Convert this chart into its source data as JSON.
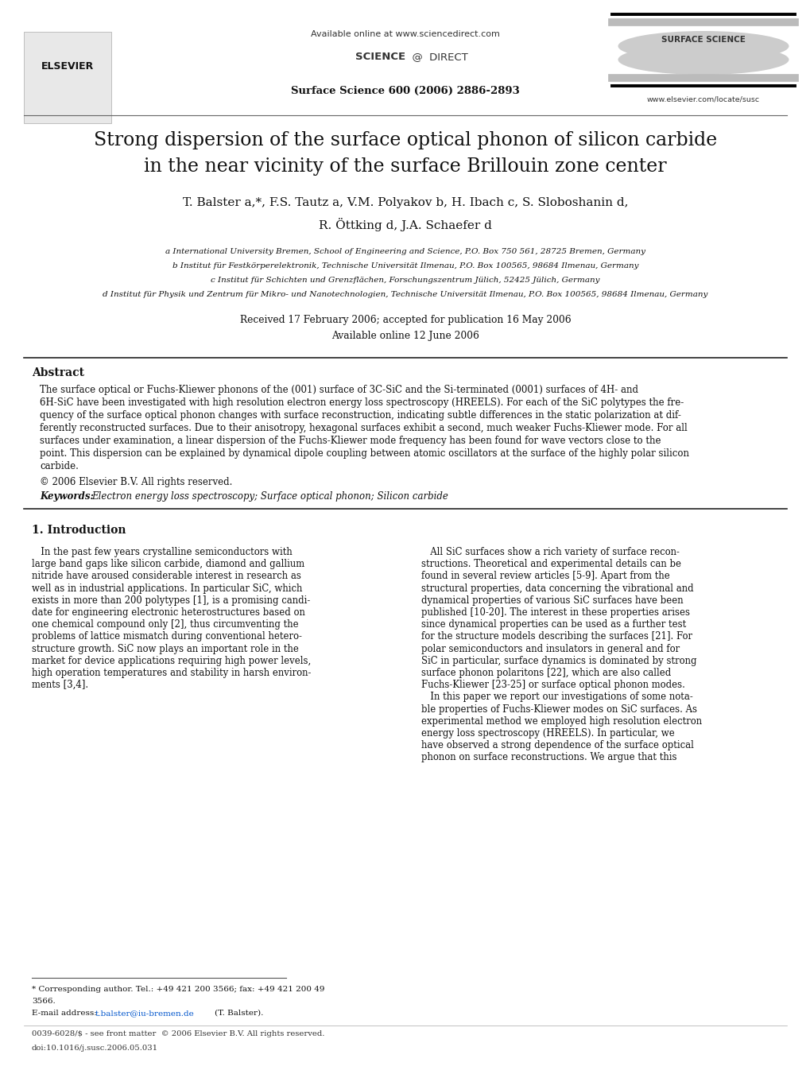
{
  "bg_color": "#ffffff",
  "available_online": "Available online at www.sciencedirect.com",
  "sciencedirect": "SCIENCE @ DIRECT",
  "journal_name": "Surface Science 600 (2006) 2886-2893",
  "website": "www.elsevier.com/locate/susc",
  "elsevier_text": "ELSEVIER",
  "surface_science_text": "SURFACE SCIENCE",
  "title_line1": "Strong dispersion of the surface optical phonon of silicon carbide",
  "title_line2": "in the near vicinity of the surface Brillouin zone center",
  "authors": "T. Balster a,*, F.S. Tautz a, V.M. Polyakov b, H. Ibach c, S. Sloboshanin d,",
  "authors2": "R. Öttking d, J.A. Schaefer d",
  "affil_a": "a International University Bremen, School of Engineering and Science, P.O. Box 750 561, 28725 Bremen, Germany",
  "affil_b": "b Institut für Festkörperelektronik, Technische Universität Ilmenau, P.O. Box 100565, 98684 Ilmenau, Germany",
  "affil_c": "c Institut für Schichten und Grenzflächen, Forschungszentrum Jülich, 52425 Jülich, Germany",
  "affil_d": "d Institut für Physik und Zentrum für Mikro- und Nanotechnologien, Technische Universität Ilmenau, P.O. Box 100565, 98684 Ilmenau, Germany",
  "received": "Received 17 February 2006; accepted for publication 16 May 2006",
  "available": "Available online 12 June 2006",
  "abstract_title": "Abstract",
  "abstract_text": "The surface optical or Fuchs-Kliewer phonons of the (001) surface of 3C-SiC and the Si-terminated (0001) surfaces of 4H- and\n6H-SiC have been investigated with high resolution electron energy loss spectroscopy (HREELS). For each of the SiC polytypes the fre-\nquency of the surface optical phonon changes with surface reconstruction, indicating subtle differences in the static polarization at dif-\nferently reconstructed surfaces. Due to their anisotropy, hexagonal surfaces exhibit a second, much weaker Fuchs-Kliewer mode. For all\nsurfaces under examination, a linear dispersion of the Fuchs-Kliewer mode frequency has been found for wave vectors close to the\npoint. This dispersion can be explained by dynamical dipole coupling between atomic oscillators at the surface of the highly polar silicon\ncarbide.",
  "copyright": "© 2006 Elsevier B.V. All rights reserved.",
  "keywords_label": "Keywords:",
  "keywords": "Electron energy loss spectroscopy; Surface optical phonon; Silicon carbide",
  "section1_title": "1. Introduction",
  "intro_col1_lines": [
    "   In the past few years crystalline semiconductors with",
    "large band gaps like silicon carbide, diamond and gallium",
    "nitride have aroused considerable interest in research as",
    "well as in industrial applications. In particular SiC, which",
    "exists in more than 200 polytypes [1], is a promising candi-",
    "date for engineering electronic heterostructures based on",
    "one chemical compound only [2], thus circumventing the",
    "problems of lattice mismatch during conventional hetero-",
    "structure growth. SiC now plays an important role in the",
    "market for device applications requiring high power levels,",
    "high operation temperatures and stability in harsh environ-",
    "ments [3,4]."
  ],
  "intro_col2_lines": [
    "   All SiC surfaces show a rich variety of surface recon-",
    "structions. Theoretical and experimental details can be",
    "found in several review articles [5-9]. Apart from the",
    "structural properties, data concerning the vibrational and",
    "dynamical properties of various SiC surfaces have been",
    "published [10-20]. The interest in these properties arises",
    "since dynamical properties can be used as a further test",
    "for the structure models describing the surfaces [21]. For",
    "polar semiconductors and insulators in general and for",
    "SiC in particular, surface dynamics is dominated by strong",
    "surface phonon polaritons [22], which are also called",
    "Fuchs-Kliewer [23-25] or surface optical phonon modes.",
    "   In this paper we report our investigations of some nota-",
    "ble properties of Fuchs-Kliewer modes on SiC surfaces. As",
    "experimental method we employed high resolution electron",
    "energy loss spectroscopy (HREELS). In particular, we",
    "have observed a strong dependence of the surface optical",
    "phonon on surface reconstructions. We argue that this"
  ],
  "footnote_star": "* Corresponding author. Tel.: +49 421 200 3566; fax: +49 421 200 49",
  "footnote_star2": "3566.",
  "footnote_email_label": "E-mail address:",
  "footnote_email": "t.balster@iu-bremen.de",
  "footnote_email_end": "(T. Balster).",
  "footer1": "0039-6028/$ - see front matter  © 2006 Elsevier B.V. All rights reserved.",
  "footer2": "doi:10.1016/j.susc.2006.05.031"
}
